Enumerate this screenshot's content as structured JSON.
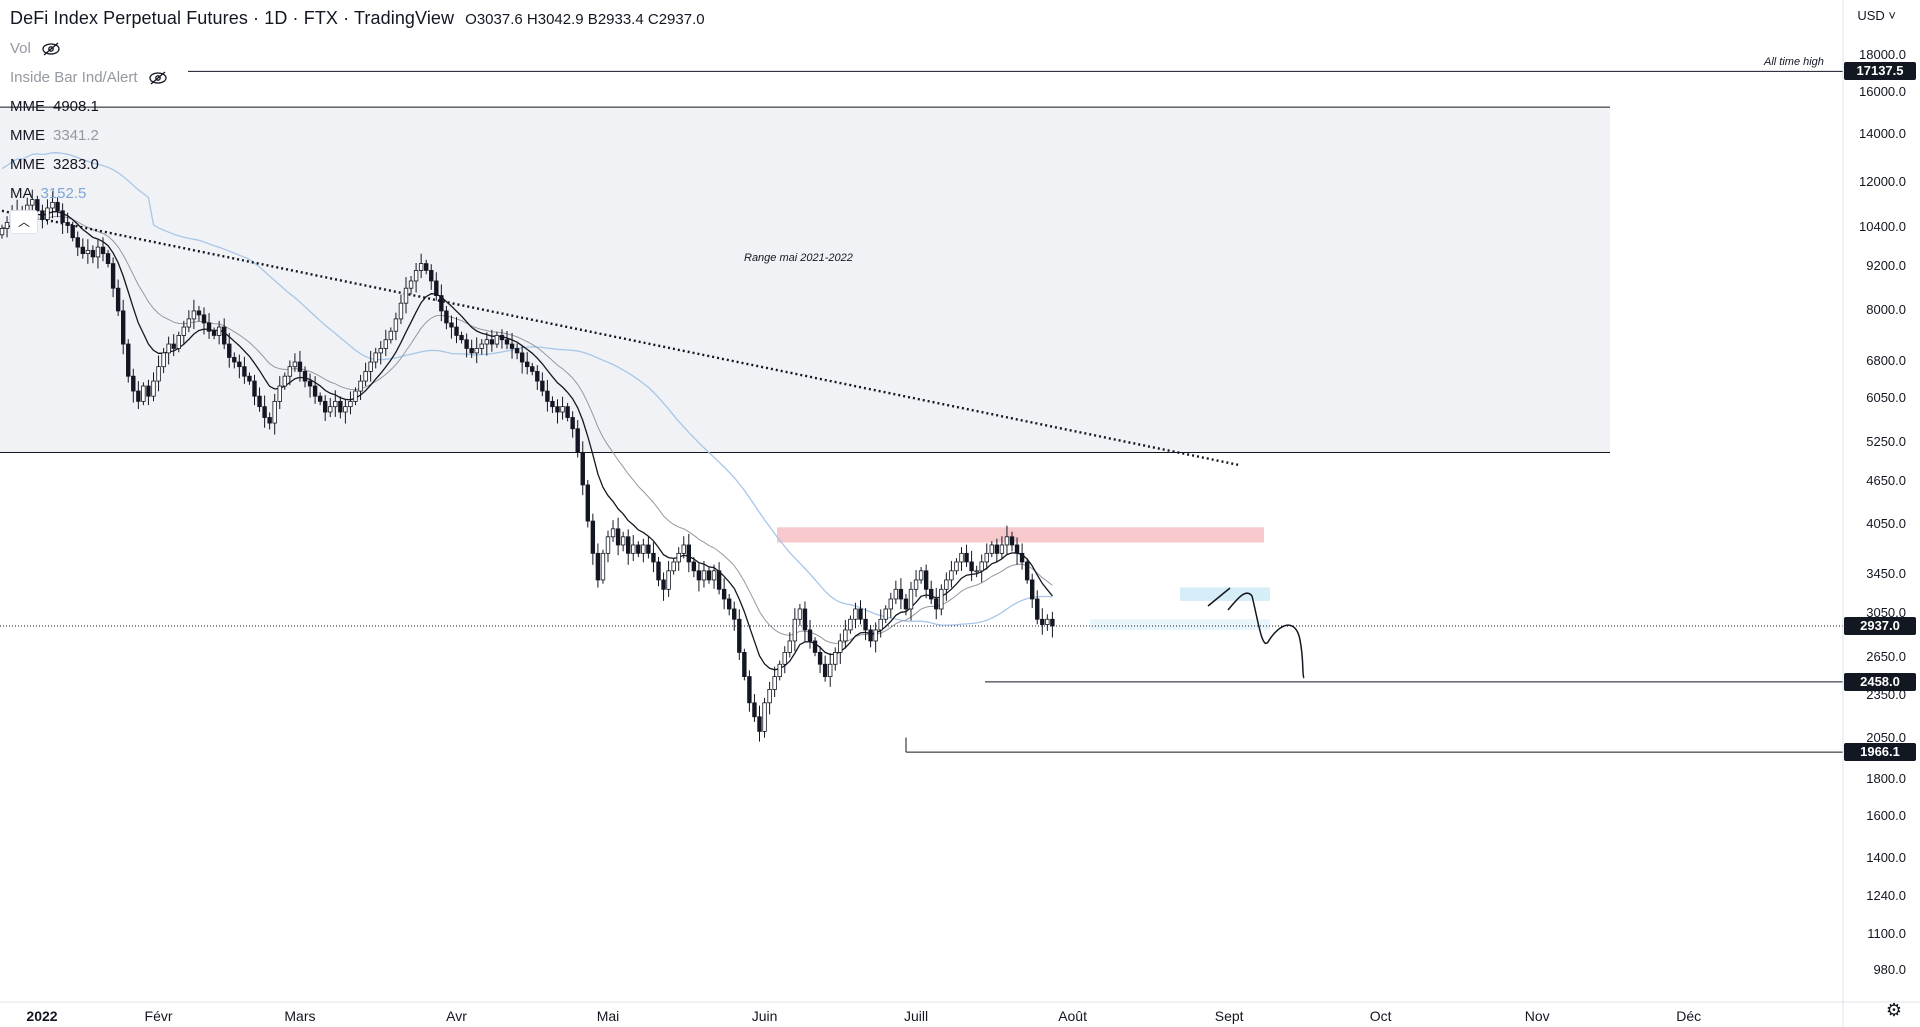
{
  "header": {
    "title": "DeFi Index Perpetual Futures · 1D · FTX · TradingView",
    "ohlc": {
      "o_label": "O",
      "o": "3037.6",
      "h_label": "H",
      "h": "3042.9",
      "l_label": "B",
      "l": "2933.4",
      "c_label": "C",
      "c": "2937.0"
    }
  },
  "indicators": [
    {
      "name": "Vol",
      "value": "",
      "hidden": true
    },
    {
      "name": "Inside Bar Ind/Alert",
      "value": "",
      "hidden": true
    },
    {
      "name": "MME",
      "value": "4908.1"
    },
    {
      "name": "MME",
      "value": "3341.2"
    },
    {
      "name": "MME",
      "value": "3283.0"
    },
    {
      "name": "MA",
      "value": "3152.5"
    }
  ],
  "currency": "USD",
  "annotations": {
    "range_label": "Range mai 2021-2022",
    "ath_label": "All time high"
  },
  "price_axis": [
    "18000.0",
    "17137.5",
    "16000.0",
    "14000.0",
    "12000.0",
    "10400.0",
    "9200.0",
    "8000.0",
    "6800.0",
    "6050.0",
    "5250.0",
    "4650.0",
    "4050.0",
    "3450.0",
    "3050.0",
    "2937.0",
    "2650.0",
    "2458.0",
    "2350.0",
    "2050.0",
    "1966.1",
    "1800.0",
    "1600.0",
    "1400.0",
    "1240.0",
    "1100.0",
    "980.0"
  ],
  "badges": {
    "ath": "17137.5",
    "current": "2937.0",
    "support1": "2458.0",
    "support2": "1966.1"
  },
  "time_axis": [
    "2022",
    "Févr",
    "Mars",
    "Avr",
    "Mai",
    "Juin",
    "Juill",
    "Août",
    "Sept",
    "Oct",
    "Nov",
    "Déc"
  ],
  "colors": {
    "up": "#131722",
    "down": "#131722",
    "range_box": "#f0f2f5",
    "resistance_zone": "#f7c9cc",
    "support_zone": "#d6eef8",
    "ma_blue": "#a8c6e8",
    "ema_grey": "#9598a1",
    "ema_black": "#131722"
  },
  "chart_data": {
    "type": "candlestick",
    "title": "DeFi Index Perpetual Futures · 1D · FTX · TradingView",
    "scale": "log",
    "ylim": [
      900,
      19000
    ],
    "xlabel": "",
    "ylabel": "",
    "x_start": "2022-01-01",
    "closes": [
      10400,
      10600,
      10900,
      11000,
      10700,
      11200,
      11400,
      11000,
      10700,
      11100,
      11300,
      11000,
      10600,
      10500,
      10100,
      9800,
      9600,
      9700,
      9500,
      9800,
      9600,
      9300,
      8600,
      8000,
      7200,
      6500,
      6200,
      6000,
      6300,
      6100,
      6400,
      6700,
      7000,
      7200,
      7100,
      7400,
      7600,
      7800,
      8000,
      7900,
      7700,
      7500,
      7400,
      7600,
      7200,
      6900,
      6800,
      6700,
      6500,
      6400,
      6100,
      5900,
      5700,
      5600,
      6000,
      6300,
      6500,
      6700,
      6800,
      6600,
      6400,
      6300,
      6100,
      6000,
      5800,
      5900,
      6000,
      5800,
      5900,
      6000,
      6200,
      6400,
      6600,
      6800,
      7000,
      7100,
      7300,
      7500,
      7800,
      8200,
      8600,
      8800,
      9100,
      9300,
      9100,
      8800,
      8400,
      8000,
      7700,
      7600,
      7400,
      7300,
      7100,
      7000,
      7100,
      7200,
      7300,
      7200,
      7400,
      7300,
      7200,
      7100,
      7000,
      6800,
      6700,
      6600,
      6400,
      6200,
      6000,
      5900,
      5800,
      5900,
      5700,
      5500,
      5100,
      4600,
      4100,
      3700,
      3400,
      3700,
      3900,
      4000,
      3800,
      3900,
      3700,
      3800,
      3700,
      3800,
      3700,
      3600,
      3400,
      3300,
      3500,
      3600,
      3700,
      3800,
      3600,
      3500,
      3400,
      3500,
      3400,
      3500,
      3300,
      3200,
      3100,
      3000,
      2700,
      2500,
      2300,
      2200,
      2100,
      2300,
      2400,
      2500,
      2600,
      2700,
      2800,
      3000,
      3100,
      2900,
      2800,
      2700,
      2600,
      2500,
      2600,
      2700,
      2800,
      2900,
      3000,
      3100,
      3000,
      2900,
      2800,
      2900,
      3000,
      3100,
      3200,
      3300,
      3200,
      3100,
      3300,
      3400,
      3500,
      3300,
      3200,
      3100,
      3300,
      3400,
      3500,
      3600,
      3700,
      3600,
      3500,
      3500,
      3600,
      3700,
      3800,
      3700,
      3800,
      3900,
      3800,
      3700,
      3600,
      3400,
      3200,
      3000,
      2950,
      3000,
      2937
    ]
  }
}
